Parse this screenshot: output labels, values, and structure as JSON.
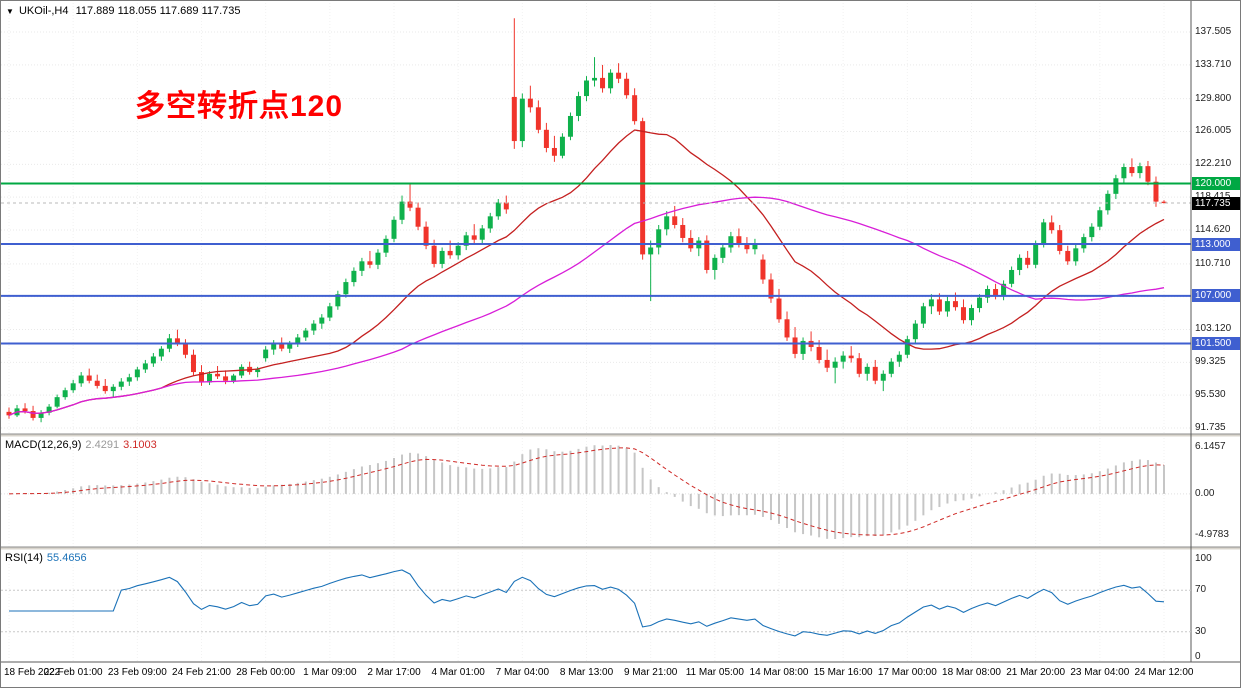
{
  "main_chart": {
    "symbol_title": "UKOil-,H4",
    "ohlc_text": "117.889 118.055 117.689 117.735",
    "annotation": "多空转折点120",
    "current_price": "117.735",
    "y_labels": [
      "137.505",
      "133.710",
      "129.800",
      "126.005",
      "122.210",
      "118.415",
      "114.620",
      "110.710",
      "106.915",
      "103.120",
      "99.325",
      "95.530",
      "91.735"
    ],
    "level_lines": [
      {
        "price": 120.0,
        "label": "120.000",
        "color": "#00a843"
      },
      {
        "price": 113.0,
        "label": "113.000",
        "color": "#3f5fd0"
      },
      {
        "price": 107.0,
        "label": "107.000",
        "color": "#3f5fd0"
      },
      {
        "price": 101.5,
        "label": "101.500",
        "color": "#3f5fd0"
      }
    ]
  },
  "macd": {
    "label": "MACD(12,26,9)",
    "value1": "2.4291",
    "value2": "3.1003",
    "scale": [
      "6.1457",
      "0.00",
      "-4.9783"
    ]
  },
  "rsi": {
    "label": "RSI(14)",
    "value": "55.4656",
    "scale": [
      "100",
      "70",
      "30",
      "0"
    ],
    "level_values": [
      70,
      30
    ]
  },
  "time_axis": {
    "labels": [
      "18 Feb 2022",
      "22 Feb 01:00",
      "23 Feb 09:00",
      "24 Feb 21:00",
      "28 Feb 00:00",
      "1 Mar 09:00",
      "2 Mar 17:00",
      "4 Mar 01:00",
      "7 Mar 04:00",
      "8 Mar 13:00",
      "9 Mar 21:00",
      "11 Mar 05:00",
      "14 Mar 08:00",
      "15 Mar 16:00",
      "17 Mar 00:00",
      "18 Mar 08:00",
      "21 Mar 20:00",
      "23 Mar 04:00",
      "24 Mar 12:00"
    ]
  },
  "colors": {
    "up": "#0fb14c",
    "down": "#f0342b",
    "ma_fast": "#c42020",
    "ma_slow": "#d81ed8",
    "macd_hist": "#c6c6c6",
    "macd_signal": "#cf2a27",
    "rsi_line": "#1b72b8",
    "grid": "#e9e9e9",
    "current_badge": "#000000",
    "current_line": "#b8b8b8"
  },
  "chart_data": {
    "type": "candlestick",
    "symbol": "UKOil-",
    "timeframe": "H4",
    "title": "UKOil-,H4 117.889 118.055 117.689 117.735",
    "price_axis": {
      "min": 91.735,
      "max": 137.505
    },
    "x_tick_labels": [
      "18 Feb 2022",
      "22 Feb 01:00",
      "23 Feb 09:00",
      "24 Feb 21:00",
      "28 Feb 00:00",
      "1 Mar 09:00",
      "2 Mar 17:00",
      "4 Mar 01:00",
      "7 Mar 04:00",
      "8 Mar 13:00",
      "9 Mar 21:00",
      "11 Mar 05:00",
      "14 Mar 08:00",
      "15 Mar 16:00",
      "17 Mar 00:00",
      "18 Mar 08:00",
      "21 Mar 20:00",
      "23 Mar 04:00",
      "24 Mar 12:00"
    ],
    "bars_per_tick": 8,
    "horizontal_levels": [
      120.0,
      113.0,
      107.0,
      101.5
    ],
    "annotation": {
      "text": "多空转折点120",
      "color": "#ff0000"
    },
    "overlays": [
      {
        "name": "MA-fast",
        "period": 20,
        "color": "#c42020"
      },
      {
        "name": "MA-slow",
        "period": 50,
        "color": "#d81ed8"
      }
    ],
    "indicators": [
      {
        "type": "MACD",
        "params": [
          12,
          26,
          9
        ],
        "display_values": [
          2.4291,
          3.1003
        ],
        "scale": [
          6.1457,
          0.0,
          -4.9783
        ]
      },
      {
        "type": "RSI",
        "params": [
          14
        ],
        "display_value": 55.4656,
        "scale": [
          100,
          70,
          30,
          0
        ]
      }
    ],
    "candles": [
      [
        93.6,
        94.1,
        92.8,
        93.2
      ],
      [
        93.2,
        94.4,
        93.0,
        94.0
      ],
      [
        94.0,
        94.6,
        93.4,
        93.7
      ],
      [
        93.7,
        94.3,
        92.6,
        92.9
      ],
      [
        92.9,
        93.8,
        92.4,
        93.5
      ],
      [
        93.5,
        94.5,
        93.2,
        94.2
      ],
      [
        94.2,
        95.6,
        94.0,
        95.3
      ],
      [
        95.3,
        96.4,
        95.0,
        96.1
      ],
      [
        96.1,
        97.3,
        95.8,
        96.9
      ],
      [
        96.9,
        98.2,
        96.5,
        97.8
      ],
      [
        97.8,
        98.6,
        96.9,
        97.2
      ],
      [
        97.2,
        97.9,
        96.3,
        96.6
      ],
      [
        96.6,
        97.4,
        95.7,
        96.0
      ],
      [
        96.0,
        96.8,
        95.2,
        96.5
      ],
      [
        96.5,
        97.5,
        96.1,
        97.1
      ],
      [
        97.1,
        98.0,
        96.6,
        97.6
      ],
      [
        97.6,
        98.8,
        97.2,
        98.5
      ],
      [
        98.5,
        99.6,
        98.1,
        99.2
      ],
      [
        99.2,
        100.4,
        98.8,
        100.0
      ],
      [
        100.0,
        101.2,
        99.5,
        100.9
      ],
      [
        100.9,
        102.6,
        100.5,
        102.1
      ],
      [
        102.1,
        103.1,
        101.2,
        101.6
      ],
      [
        101.6,
        102.0,
        99.8,
        100.2
      ],
      [
        100.2,
        100.8,
        97.8,
        98.2
      ],
      [
        98.2,
        99.0,
        96.6,
        97.0
      ],
      [
        97.0,
        98.3,
        96.7,
        98.0
      ],
      [
        98.0,
        98.9,
        97.4,
        97.7
      ],
      [
        97.7,
        98.4,
        96.8,
        97.2
      ],
      [
        97.2,
        98.0,
        96.9,
        97.8
      ],
      [
        97.8,
        99.1,
        97.5,
        98.8
      ],
      [
        98.8,
        99.4,
        97.9,
        98.2
      ],
      [
        98.2,
        98.8,
        97.6,
        98.5
      ],
      [
        99.8,
        101.2,
        99.4,
        100.8
      ],
      [
        100.8,
        101.9,
        100.2,
        101.4
      ],
      [
        101.4,
        102.2,
        100.6,
        100.9
      ],
      [
        100.9,
        101.8,
        100.4,
        101.5
      ],
      [
        101.5,
        102.6,
        101.1,
        102.2
      ],
      [
        102.2,
        103.3,
        101.8,
        103.0
      ],
      [
        103.0,
        104.2,
        102.5,
        103.8
      ],
      [
        103.8,
        104.9,
        103.2,
        104.5
      ],
      [
        104.5,
        106.2,
        104.1,
        105.8
      ],
      [
        105.8,
        107.6,
        105.4,
        107.2
      ],
      [
        107.2,
        109.0,
        106.8,
        108.6
      ],
      [
        108.6,
        110.3,
        108.1,
        109.9
      ],
      [
        109.9,
        111.4,
        109.3,
        111.0
      ],
      [
        111.0,
        112.2,
        110.2,
        110.6
      ],
      [
        110.6,
        112.4,
        110.1,
        112.0
      ],
      [
        112.0,
        114.0,
        111.5,
        113.6
      ],
      [
        113.6,
        116.2,
        113.2,
        115.8
      ],
      [
        115.8,
        118.6,
        115.3,
        117.9
      ],
      [
        117.9,
        119.9,
        116.8,
        117.2
      ],
      [
        117.2,
        117.8,
        114.6,
        115.0
      ],
      [
        115.0,
        115.6,
        112.4,
        112.8
      ],
      [
        112.8,
        113.5,
        110.3,
        110.7
      ],
      [
        110.7,
        112.6,
        110.2,
        112.2
      ],
      [
        112.2,
        113.4,
        111.3,
        111.7
      ],
      [
        111.7,
        113.2,
        111.2,
        112.8
      ],
      [
        112.8,
        114.4,
        112.3,
        114.0
      ],
      [
        114.0,
        115.3,
        113.1,
        113.5
      ],
      [
        113.5,
        115.2,
        113.0,
        114.8
      ],
      [
        114.8,
        116.6,
        114.3,
        116.2
      ],
      [
        116.2,
        118.2,
        115.8,
        117.8
      ],
      [
        117.8,
        118.6,
        116.5,
        117.0
      ],
      [
        130.0,
        139.1,
        124.0,
        124.9
      ],
      [
        124.9,
        130.4,
        124.2,
        129.8
      ],
      [
        129.8,
        131.3,
        128.2,
        128.8
      ],
      [
        128.8,
        129.6,
        125.8,
        126.2
      ],
      [
        126.2,
        127.0,
        123.6,
        124.1
      ],
      [
        124.1,
        125.5,
        122.5,
        123.2
      ],
      [
        123.2,
        125.8,
        122.9,
        125.4
      ],
      [
        125.4,
        128.2,
        125.0,
        127.8
      ],
      [
        127.8,
        130.6,
        127.2,
        130.1
      ],
      [
        130.1,
        132.4,
        129.5,
        131.9
      ],
      [
        131.9,
        134.6,
        131.2,
        132.2
      ],
      [
        132.2,
        133.7,
        130.5,
        131.0
      ],
      [
        131.0,
        133.2,
        130.4,
        132.8
      ],
      [
        132.8,
        133.9,
        131.6,
        132.1
      ],
      [
        132.1,
        132.8,
        129.8,
        130.2
      ],
      [
        130.2,
        131.0,
        126.8,
        127.2
      ],
      [
        127.2,
        127.6,
        111.2,
        111.8
      ],
      [
        111.8,
        113.4,
        106.4,
        112.6
      ],
      [
        112.6,
        115.2,
        111.8,
        114.7
      ],
      [
        114.7,
        116.8,
        114.0,
        116.2
      ],
      [
        116.2,
        117.4,
        114.8,
        115.2
      ],
      [
        115.2,
        116.0,
        113.2,
        113.7
      ],
      [
        113.7,
        114.6,
        112.1,
        112.5
      ],
      [
        112.5,
        113.8,
        111.6,
        113.4
      ],
      [
        113.4,
        114.0,
        109.6,
        110.0
      ],
      [
        110.0,
        111.8,
        108.9,
        111.4
      ],
      [
        111.4,
        113.0,
        110.8,
        112.6
      ],
      [
        112.6,
        114.4,
        112.0,
        113.9
      ],
      [
        113.9,
        114.8,
        112.6,
        113.1
      ],
      [
        113.1,
        113.8,
        111.9,
        112.4
      ],
      [
        112.4,
        113.6,
        111.8,
        112.9
      ],
      [
        111.2,
        111.8,
        108.4,
        108.9
      ],
      [
        108.9,
        109.6,
        106.2,
        106.7
      ],
      [
        106.7,
        107.8,
        103.9,
        104.3
      ],
      [
        104.3,
        105.2,
        101.8,
        102.2
      ],
      [
        102.2,
        103.4,
        99.8,
        100.3
      ],
      [
        100.3,
        102.2,
        99.6,
        101.8
      ],
      [
        101.8,
        102.9,
        100.6,
        101.1
      ],
      [
        101.1,
        101.9,
        99.2,
        99.6
      ],
      [
        99.6,
        100.8,
        98.2,
        98.7
      ],
      [
        98.7,
        99.9,
        96.9,
        99.4
      ],
      [
        99.4,
        100.6,
        98.6,
        100.1
      ],
      [
        100.1,
        101.2,
        99.3,
        99.8
      ],
      [
        99.8,
        100.4,
        97.6,
        98.0
      ],
      [
        98.0,
        99.2,
        97.2,
        98.8
      ],
      [
        98.8,
        99.6,
        96.8,
        97.2
      ],
      [
        97.2,
        98.4,
        96.0,
        98.0
      ],
      [
        98.0,
        99.8,
        97.6,
        99.4
      ],
      [
        99.4,
        100.6,
        98.8,
        100.2
      ],
      [
        100.2,
        102.4,
        99.8,
        102.0
      ],
      [
        102.0,
        104.2,
        101.6,
        103.8
      ],
      [
        103.8,
        106.2,
        103.3,
        105.8
      ],
      [
        105.8,
        107.2,
        104.9,
        106.6
      ],
      [
        106.6,
        107.3,
        104.8,
        105.2
      ],
      [
        105.2,
        106.9,
        104.6,
        106.4
      ],
      [
        106.4,
        107.4,
        105.3,
        105.7
      ],
      [
        105.7,
        106.6,
        103.8,
        104.2
      ],
      [
        104.2,
        106.0,
        103.6,
        105.6
      ],
      [
        105.6,
        107.2,
        105.1,
        106.8
      ],
      [
        106.8,
        108.2,
        106.2,
        107.8
      ],
      [
        107.8,
        108.4,
        106.6,
        107.0
      ],
      [
        107.0,
        108.8,
        106.5,
        108.4
      ],
      [
        108.4,
        110.4,
        108.0,
        110.0
      ],
      [
        110.0,
        111.8,
        109.4,
        111.4
      ],
      [
        111.4,
        112.2,
        110.2,
        110.6
      ],
      [
        110.6,
        113.4,
        110.2,
        113.0
      ],
      [
        113.0,
        115.9,
        112.6,
        115.5
      ],
      [
        115.5,
        116.3,
        114.2,
        114.6
      ],
      [
        114.6,
        115.2,
        111.8,
        112.2
      ],
      [
        112.2,
        112.8,
        110.6,
        111.0
      ],
      [
        111.0,
        112.9,
        110.5,
        112.5
      ],
      [
        112.5,
        114.2,
        112.0,
        113.8
      ],
      [
        113.8,
        115.4,
        113.3,
        115.0
      ],
      [
        115.0,
        117.3,
        114.6,
        116.9
      ],
      [
        116.9,
        119.2,
        116.4,
        118.8
      ],
      [
        118.8,
        121.0,
        118.2,
        120.6
      ],
      [
        120.6,
        122.3,
        120.0,
        121.9
      ],
      [
        121.9,
        122.9,
        120.8,
        121.2
      ],
      [
        121.2,
        122.4,
        120.6,
        122.0
      ],
      [
        122.0,
        122.6,
        119.8,
        120.2
      ],
      [
        120.2,
        120.8,
        117.3,
        117.9
      ],
      [
        117.889,
        118.055,
        117.689,
        117.735
      ]
    ]
  }
}
